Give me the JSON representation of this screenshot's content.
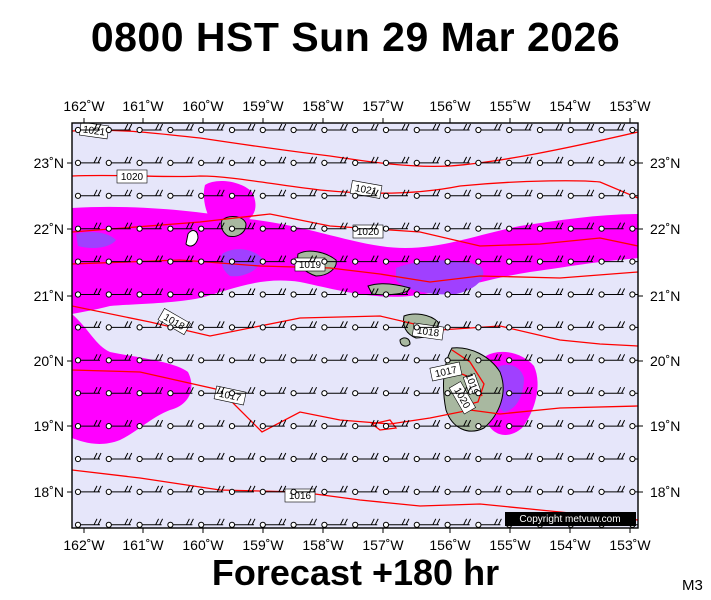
{
  "title": "0800 HST Sun 29 Mar 2026",
  "footer": "Forecast +180 hr",
  "model_code": "M3",
  "copyright": "Copyright metvuw.com",
  "colors": {
    "ocean": "#e6e6fa",
    "rain_light": "#ff00ff",
    "rain_heavy": "#a040ff",
    "isobar": "#ff0000",
    "land": "#a8b8a0",
    "border": "#000000"
  },
  "map": {
    "lon_range": [
      -162.4,
      -152.7
    ],
    "lat_range": [
      17.5,
      23.6
    ],
    "lon_ticks": [
      "162˚W",
      "161˚W",
      "160˚W",
      "159˚W",
      "158˚W",
      "157˚W",
      "156˚W",
      "155˚W",
      "154˚W",
      "153˚W"
    ],
    "lat_ticks": [
      "23˚N",
      "22˚N",
      "21˚N",
      "20˚N",
      "19˚N",
      "18˚N"
    ],
    "isobar_labels": [
      "1021",
      "1020",
      "1021",
      "1020",
      "1019",
      "1018",
      "1018",
      "1017",
      "1017",
      "1016",
      "1019",
      "1020"
    ]
  }
}
